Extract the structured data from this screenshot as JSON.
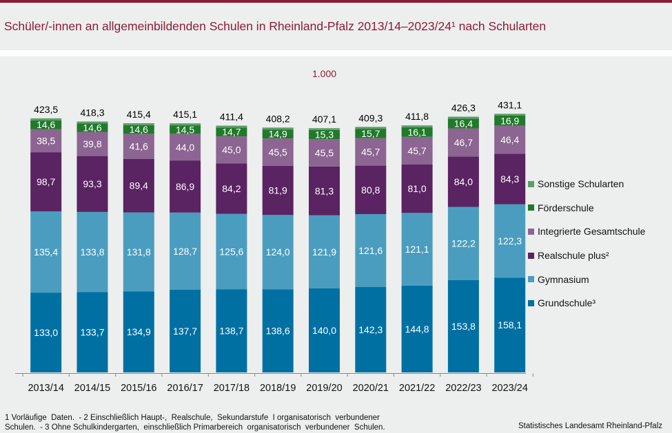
{
  "header": {
    "title": "Schüler/-innen an allgemeinbildenden Schulen in Rheinland-Pfalz 2013/14–2023/24¹ nach Schularten"
  },
  "chart_data": {
    "type": "bar",
    "stacked": true,
    "title": "Schüler/-innen an allgemeinbildenden Schulen in Rheinland-Pfalz 2013/14–2023/24¹ nach Schularten",
    "unit_label": "1.000",
    "xlabel": "",
    "ylabel": "1.000",
    "ylim": [
      0,
      480
    ],
    "grid": false,
    "legend_position": "right",
    "categories": [
      "2013/14",
      "2014/15",
      "2015/16",
      "2016/17",
      "2017/18",
      "2018/19",
      "2019/20",
      "2020/21",
      "2021/22",
      "2022/23",
      "2023/24"
    ],
    "series": [
      {
        "name": "Grundschule³",
        "color": "#0070a3",
        "label_color": "#ffffff",
        "show_labels": true,
        "values": [
          133.0,
          133.7,
          134.9,
          137.7,
          138.7,
          138.6,
          140.0,
          142.3,
          144.8,
          153.8,
          158.1
        ],
        "labels": [
          "133,0",
          "133,7",
          "134,9",
          "137,7",
          "138,7",
          "138,6",
          "140,0",
          "142,3",
          "144,8",
          "153,8",
          "158,1"
        ]
      },
      {
        "name": "Gymnasium",
        "color": "#4b9dbf",
        "label_color": "#ffffff",
        "show_labels": true,
        "values": [
          135.4,
          133.8,
          131.8,
          128.7,
          125.6,
          124.0,
          121.9,
          121.6,
          121.1,
          122.2,
          122.3
        ],
        "labels": [
          "135,4",
          "133,8",
          "131,8",
          "128,7",
          "125,6",
          "124,0",
          "121,9",
          "121,6",
          "121,1",
          "122,2",
          "122,3"
        ]
      },
      {
        "name": "Realschule plus²",
        "color": "#5a2362",
        "label_color": "#ffffff",
        "show_labels": true,
        "values": [
          98.7,
          93.3,
          89.4,
          86.9,
          84.2,
          81.9,
          81.3,
          80.8,
          81.0,
          84.0,
          84.3
        ],
        "labels": [
          "98,7",
          "93,3",
          "89,4",
          "86,9",
          "84,2",
          "81,9",
          "81,3",
          "80,8",
          "81,0",
          "84,0",
          "84,3"
        ]
      },
      {
        "name": "Integrierte Gesamtschule",
        "color": "#8c6592",
        "label_color": "#ffffff",
        "show_labels": true,
        "values": [
          38.5,
          39.8,
          41.6,
          44.0,
          45.0,
          45.5,
          45.5,
          45.7,
          45.7,
          46.7,
          46.4
        ],
        "labels": [
          "38,5",
          "39,8",
          "41,6",
          "44,0",
          "45,0",
          "45,5",
          "45,5",
          "45,7",
          "45,7",
          "46,7",
          "46,4"
        ]
      },
      {
        "name": "Förderschule",
        "color": "#217a2b",
        "label_color": "#ffffff",
        "show_labels": true,
        "values": [
          14.6,
          14.6,
          14.6,
          14.5,
          14.7,
          14.9,
          15.3,
          15.7,
          16.1,
          16.4,
          16.9
        ],
        "labels": [
          "14,6",
          "14,6",
          "14,6",
          "14,5",
          "14,7",
          "14,9",
          "15,3",
          "15,7",
          "16,1",
          "16,4",
          "16,9"
        ]
      },
      {
        "name": "Sonstige Schularten",
        "color": "#5f9e6a",
        "label_color": "#ffffff",
        "show_labels": false,
        "values": [
          3.3,
          3.1,
          3.1,
          3.3,
          3.2,
          3.3,
          3.1,
          3.2,
          3.1,
          3.2,
          3.1
        ],
        "labels": [
          "",
          "",
          "",
          "",
          "",
          "",
          "",
          "",
          "",
          "",
          ""
        ]
      }
    ],
    "totals": [
      423.5,
      418.3,
      415.4,
      415.1,
      411.4,
      408.2,
      407.1,
      409.3,
      411.8,
      426.3,
      431.1
    ],
    "total_labels": [
      "423,5",
      "418,3",
      "415,4",
      "415,1",
      "411,4",
      "408,2",
      "407,1",
      "409,3",
      "411,8",
      "426,3",
      "431,1"
    ]
  },
  "legend": {
    "items": [
      {
        "label": "Sonstige Schularten",
        "color": "#5f9e6a"
      },
      {
        "label": "Förderschule",
        "color": "#217a2b"
      },
      {
        "label": "Integrierte Gesamtschule",
        "color": "#8c6592"
      },
      {
        "label": "Realschule plus²",
        "color": "#5a2362"
      },
      {
        "label": "Gymnasium",
        "color": "#4b9dbf"
      },
      {
        "label": "Grundschule³",
        "color": "#0070a3"
      }
    ]
  },
  "footer": {
    "footnote": "1 Vorläufige  Daten.  - 2 Einschließlich Haupt-,  Realschule,  Sekundarstufe  I organisatorisch  verbundener\nSchulen.  - 3 Ohne Schulkindergarten,  einschließlich Primarbereich  organisatorisch  verbundener  Schulen.",
    "source": "Statistisches Landesamt Rheinland-Pfalz"
  },
  "colors": {
    "brand": "#8b1e34",
    "background": "#edeeee"
  }
}
